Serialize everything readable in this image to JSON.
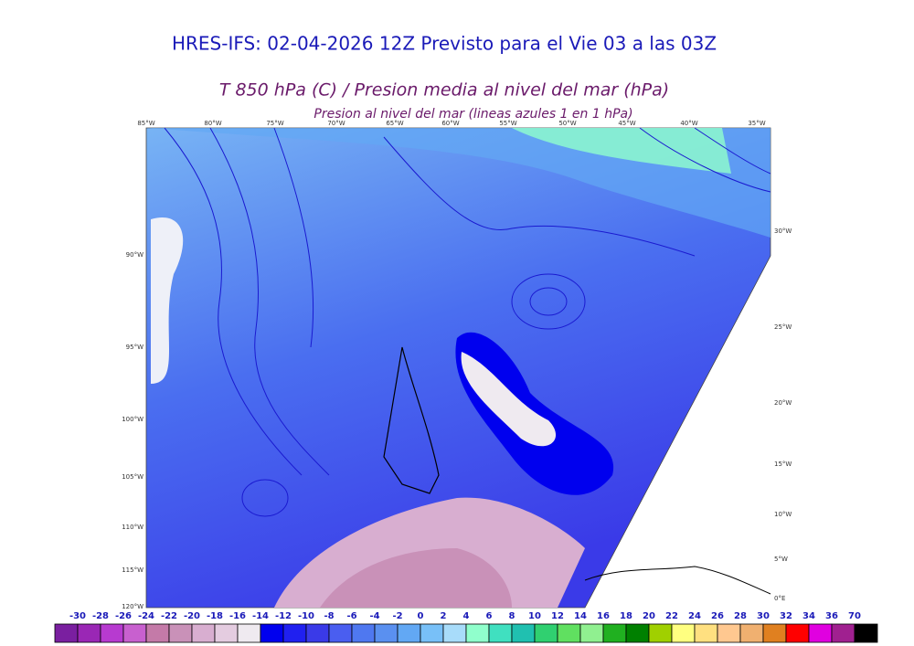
{
  "title": "HRES-IFS: 02-04-2026 12Z Previsto para el Vie 03 a las 03Z",
  "subtitle": "T 850 hPa (C) / Presion media al nivel del mar (hPa)",
  "note": "Presion al nivel del mar (lineas azules 1 en 1 hPa)",
  "map_labels": {
    "top": [
      "85°W",
      "80°W",
      "75°W",
      "70°W",
      "65°W",
      "60°W",
      "55°W",
      "50°W",
      "45°W",
      "40°W",
      "35°W"
    ],
    "left": [
      "90°W",
      "95°W",
      "100°W",
      "105°W",
      "110°W",
      "115°W",
      "120°W"
    ],
    "right": [
      "30°W",
      "25°W",
      "20°W",
      "15°W",
      "10°W",
      "5°W",
      "0°E"
    ]
  },
  "colorbar": {
    "labels": [
      -30,
      -28,
      -26,
      -24,
      -22,
      -20,
      -18,
      -16,
      -14,
      -12,
      -10,
      -8,
      -6,
      -4,
      -2,
      0,
      2,
      4,
      6,
      8,
      10,
      12,
      14,
      16,
      18,
      20,
      22,
      24,
      26,
      28,
      30,
      32,
      34,
      36,
      70
    ],
    "colors": [
      "#7a1fa0",
      "#9a27b5",
      "#b73ad0",
      "#c860cf",
      "#c47aa8",
      "#c991b8",
      "#d8aed0",
      "#e4cce0",
      "#efeaf0",
      "#0000ee",
      "#2020f0",
      "#3a3ae8",
      "#4a5ef0",
      "#4f78f0",
      "#5a90f0",
      "#62a8f4",
      "#78c0f8",
      "#a8dcfa",
      "#90ffcc",
      "#40e0c0",
      "#20c0b0",
      "#30d070",
      "#60e060",
      "#90f090",
      "#20b020",
      "#008000",
      "#a0d000",
      "#ffff80",
      "#ffe080",
      "#ffc890",
      "#f0b070",
      "#e08020",
      "#ff0000",
      "#e000e0",
      "#a02090",
      "#000000"
    ]
  }
}
